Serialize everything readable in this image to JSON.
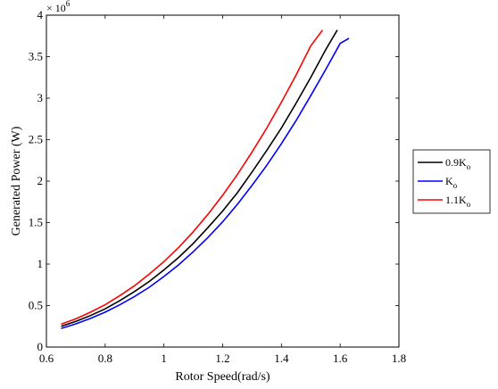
{
  "chart_data": {
    "type": "line",
    "xlabel": "Rotor Speed(rad/s)",
    "ylabel": "Generated Power (W)",
    "xlim": [
      0.6,
      1.8
    ],
    "ylim": [
      0,
      4000000
    ],
    "xticks": [
      "0.6",
      "0.8",
      "1",
      "1.2",
      "1.4",
      "1.6",
      "1.8"
    ],
    "xtick_values": [
      0.6,
      0.8,
      1.0,
      1.2,
      1.4,
      1.6,
      1.8
    ],
    "yticks": [
      "0",
      "0.5",
      "1",
      "1.5",
      "2",
      "2.5",
      "3",
      "3.5",
      "4"
    ],
    "ytick_values": [
      0,
      500000,
      1000000,
      1500000,
      2000000,
      2500000,
      3000000,
      3500000,
      4000000
    ],
    "y_exponent": {
      "base": "× 10",
      "power": "6"
    },
    "grid": false,
    "legend_position": "outside-right",
    "series": [
      {
        "name": "0.9K",
        "name_sub": "o",
        "color": "#000000",
        "x": [
          0.65,
          0.7,
          0.75,
          0.8,
          0.85,
          0.9,
          0.95,
          1.0,
          1.05,
          1.1,
          1.15,
          1.2,
          1.25,
          1.3,
          1.35,
          1.4,
          1.45,
          1.5,
          1.55,
          1.59
        ],
        "y": [
          250000,
          310000,
          380000,
          460000,
          560000,
          670000,
          790000,
          930000,
          1080000,
          1250000,
          1440000,
          1640000,
          1860000,
          2110000,
          2370000,
          2640000,
          2940000,
          3250000,
          3580000,
          3820000
        ]
      },
      {
        "name": "K",
        "name_sub": "o",
        "color": "#0000ff",
        "x": [
          0.65,
          0.7,
          0.75,
          0.8,
          0.85,
          0.9,
          0.95,
          1.0,
          1.05,
          1.1,
          1.15,
          1.2,
          1.25,
          1.3,
          1.35,
          1.4,
          1.45,
          1.5,
          1.55,
          1.6,
          1.63
        ],
        "y": [
          225000,
          280000,
          345000,
          420000,
          510000,
          610000,
          720000,
          850000,
          990000,
          1150000,
          1320000,
          1510000,
          1720000,
          1950000,
          2190000,
          2450000,
          2730000,
          3030000,
          3340000,
          3660000,
          3720000
        ]
      },
      {
        "name": "1.1K",
        "name_sub": "o",
        "color": "#ff0000",
        "x": [
          0.65,
          0.7,
          0.75,
          0.8,
          0.85,
          0.9,
          0.95,
          1.0,
          1.05,
          1.1,
          1.15,
          1.2,
          1.25,
          1.3,
          1.35,
          1.4,
          1.45,
          1.5,
          1.54
        ],
        "y": [
          275000,
          340000,
          420000,
          510000,
          620000,
          740000,
          880000,
          1030000,
          1200000,
          1390000,
          1600000,
          1830000,
          2080000,
          2350000,
          2640000,
          2950000,
          3280000,
          3630000,
          3820000
        ]
      }
    ]
  }
}
